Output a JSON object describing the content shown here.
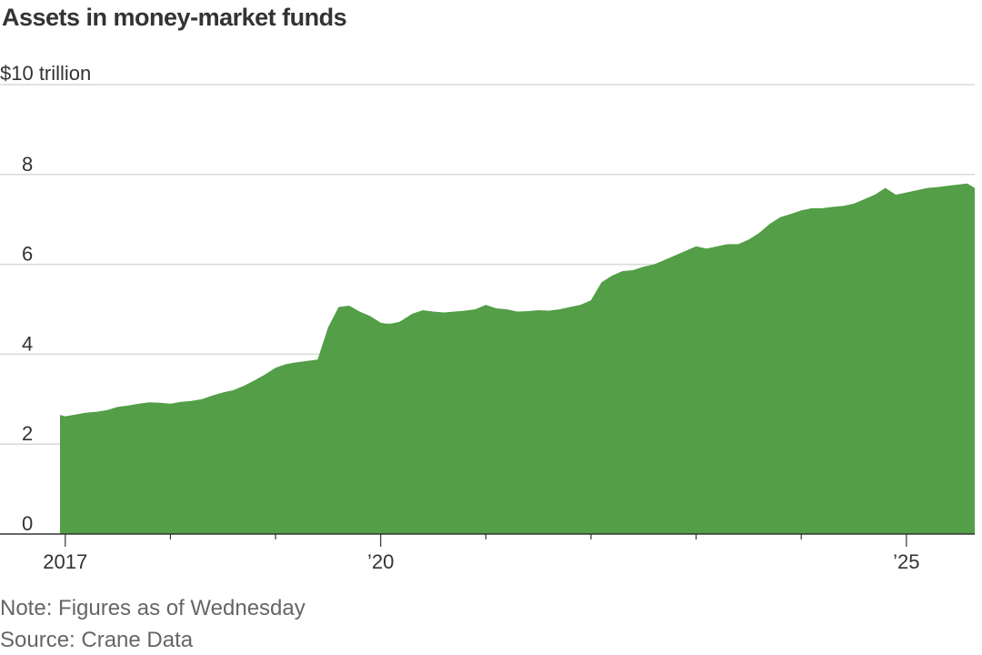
{
  "title": "Assets in money-market funds",
  "unit_label": "$10 trillion",
  "note": "Note: Figures as of Wednesday",
  "source": "Source: Crane Data",
  "colors": {
    "area": "#539e47",
    "grid": "#d9d9d9",
    "axis": "#333333"
  },
  "chart_data": {
    "type": "area",
    "title": "Assets in money-market funds",
    "ylabel": "$10 trillion",
    "ylim": [
      0,
      10
    ],
    "yticks": [
      0,
      2,
      4,
      6,
      8,
      10
    ],
    "ytick_labels": [
      "0",
      "2",
      "4",
      "6",
      "8",
      ""
    ],
    "xlim": [
      2016.95,
      2025.65
    ],
    "xticks": [
      2017,
      2020,
      2025
    ],
    "xtick_labels": [
      "2017",
      "’20",
      "’25"
    ],
    "minor_xticks": [
      2018,
      2019,
      2021,
      2022,
      2023,
      2024
    ],
    "grid": true,
    "series": [
      {
        "x": [
          2016.95,
          2017.0,
          2017.1,
          2017.2,
          2017.3,
          2017.4,
          2017.5,
          2017.6,
          2017.7,
          2017.8,
          2017.9,
          2018.0,
          2018.1,
          2018.2,
          2018.3,
          2018.4,
          2018.5,
          2018.6,
          2018.7,
          2018.8,
          2018.9,
          2019.0,
          2019.1,
          2019.2,
          2019.3,
          2019.4,
          2019.5,
          2019.6,
          2019.7,
          2019.8,
          2019.9,
          2020.0,
          2020.05,
          2020.1,
          2020.18,
          2020.3,
          2020.4,
          2020.5,
          2020.6,
          2020.7,
          2020.8,
          2020.9,
          2021.0,
          2021.1,
          2021.2,
          2021.3,
          2021.4,
          2021.5,
          2021.6,
          2021.7,
          2021.8,
          2021.9,
          2022.0,
          2022.1,
          2022.2,
          2022.3,
          2022.4,
          2022.5,
          2022.6,
          2022.7,
          2022.8,
          2022.9,
          2023.0,
          2023.1,
          2023.2,
          2023.3,
          2023.4,
          2023.5,
          2023.6,
          2023.7,
          2023.8,
          2023.9,
          2024.0,
          2024.1,
          2024.2,
          2024.3,
          2024.4,
          2024.5,
          2024.6,
          2024.7,
          2024.8,
          2024.9,
          2025.0,
          2025.1,
          2025.2,
          2025.3,
          2025.4,
          2025.5,
          2025.58,
          2025.65
        ],
        "values": [
          2.65,
          2.62,
          2.66,
          2.7,
          2.72,
          2.76,
          2.83,
          2.86,
          2.9,
          2.93,
          2.92,
          2.9,
          2.94,
          2.96,
          3.0,
          3.08,
          3.15,
          3.2,
          3.3,
          3.42,
          3.55,
          3.7,
          3.78,
          3.82,
          3.85,
          3.88,
          4.6,
          5.05,
          5.08,
          4.95,
          4.85,
          4.7,
          4.68,
          4.68,
          4.72,
          4.9,
          4.98,
          4.95,
          4.93,
          4.95,
          4.97,
          5.0,
          5.1,
          5.02,
          5.0,
          4.95,
          4.96,
          4.98,
          4.97,
          5.0,
          5.05,
          5.1,
          5.2,
          5.6,
          5.75,
          5.85,
          5.87,
          5.95,
          6.0,
          6.1,
          6.2,
          6.3,
          6.4,
          6.35,
          6.4,
          6.45,
          6.45,
          6.55,
          6.7,
          6.9,
          7.05,
          7.12,
          7.2,
          7.25,
          7.25,
          7.28,
          7.3,
          7.35,
          7.45,
          7.55,
          7.7,
          7.55,
          7.6,
          7.65,
          7.7,
          7.72,
          7.75,
          7.78,
          7.8,
          7.7
        ]
      }
    ]
  }
}
